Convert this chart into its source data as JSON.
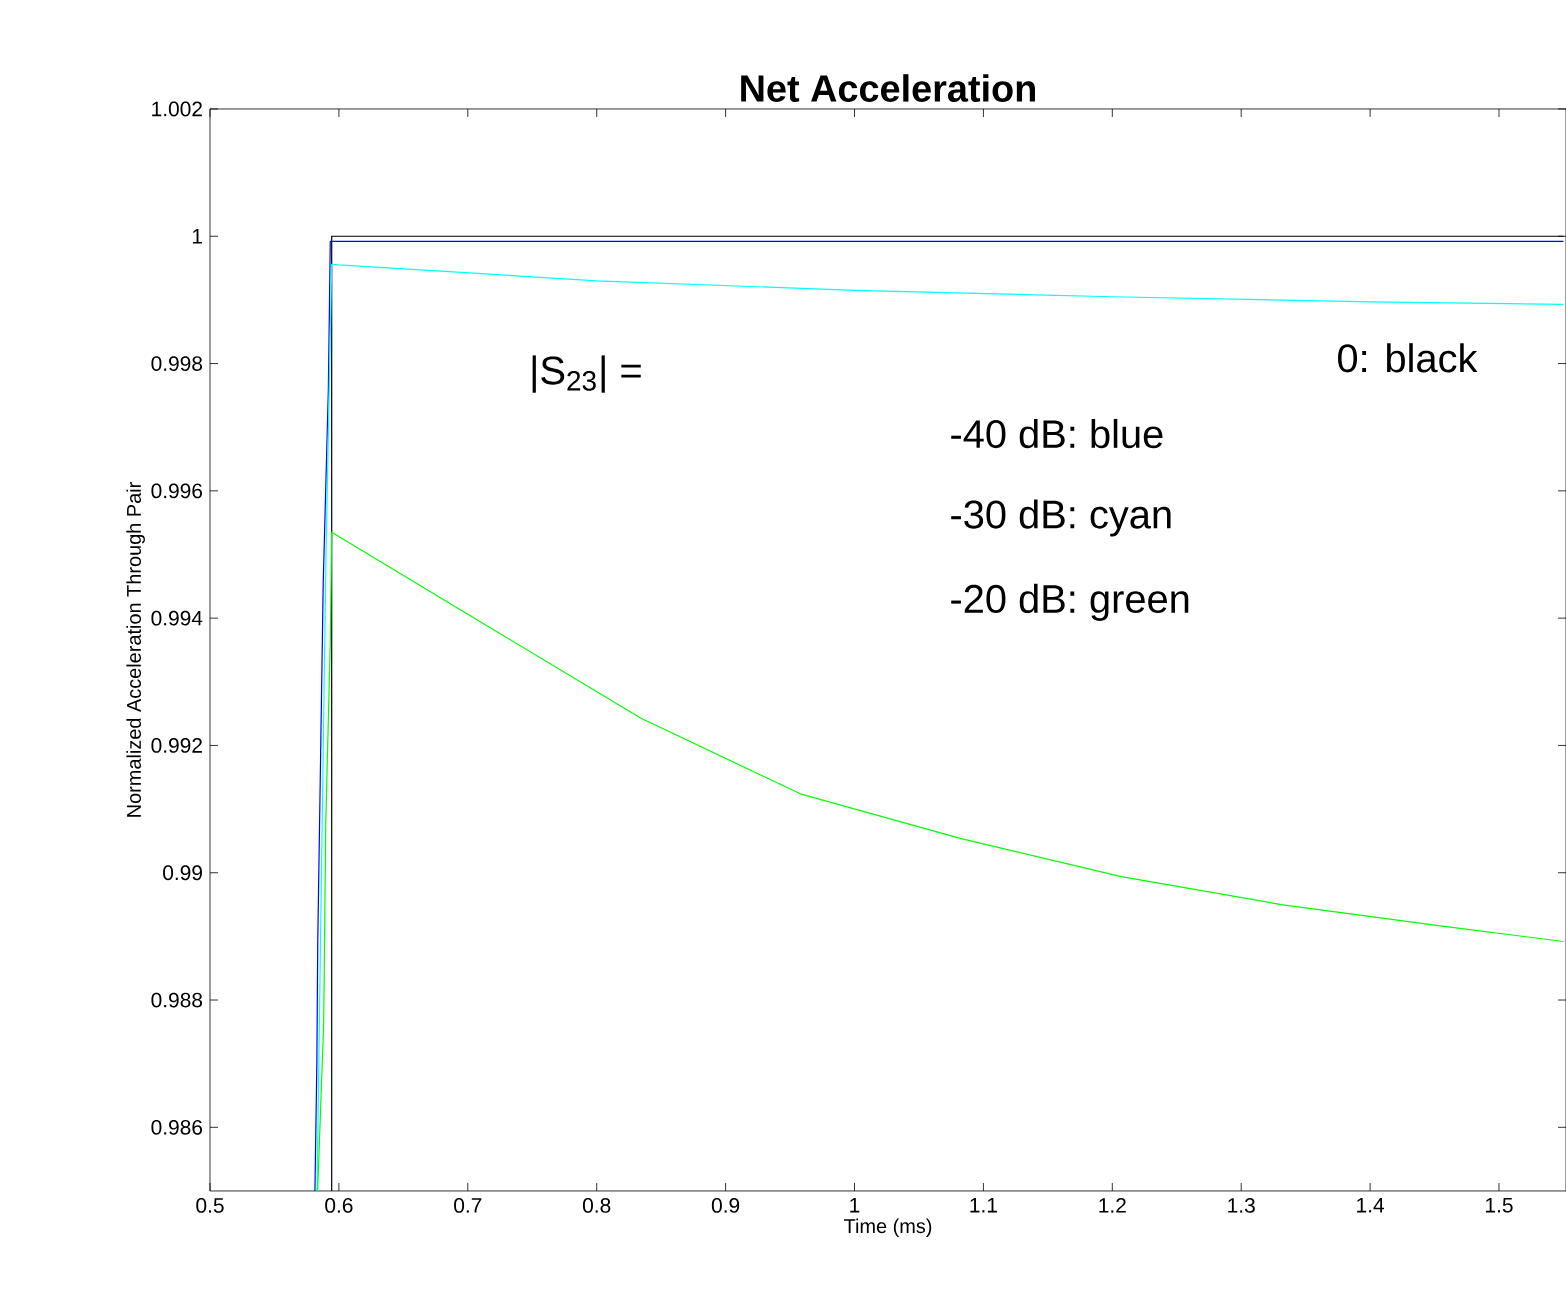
{
  "chart_data": {
    "type": "line",
    "title": "Net Acceleration",
    "xlabel": "Time (ms)",
    "ylabel": "Normalized Acceleration Through Pair",
    "xlim": [
      0.5,
      1.552
    ],
    "ylim": [
      0.985,
      1.002
    ],
    "xticks": [
      0.5,
      0.6,
      0.7,
      0.8,
      0.9,
      1,
      1.1,
      1.2,
      1.3,
      1.4,
      1.5
    ],
    "yticks": [
      0.986,
      0.988,
      0.99,
      0.992,
      0.994,
      0.996,
      0.998,
      1,
      1.002
    ],
    "grid": false,
    "marker": "none",
    "line_style": "solid",
    "annotations": [
      "|S$_{23}$|  =",
      "0:  black",
      "-40 dB:  blue",
      "-30 dB:  cyan",
      "-20 dB:  green"
    ],
    "series": [
      {
        "color": "#000000",
        "x": [
          0.5944,
          0.5944,
          1.55
        ],
        "values": [
          0.985,
          1.0,
          1.0
        ]
      },
      {
        "color": "#0000ff",
        "x": [
          0.5814,
          0.5829,
          0.5836,
          0.5856,
          0.5878,
          0.5918,
          0.5933,
          1.55
        ],
        "values": [
          0.985,
          0.98704,
          0.98893,
          0.99157,
          0.99453,
          0.99758,
          0.99992,
          0.99992
        ]
      },
      {
        "color": "#00ffff",
        "x": [
          0.583,
          0.59,
          0.5944,
          0.6,
          0.8,
          1.0,
          1.2,
          1.4,
          1.55
        ],
        "values": [
          0.985,
          0.995,
          0.99956,
          0.99955,
          0.9993,
          0.99915,
          0.99905,
          0.99897,
          0.99893
        ]
      },
      {
        "color": "#00ff00",
        "x": [
          0.5835,
          0.5882,
          0.5898,
          0.5933,
          0.5944,
          0.71,
          0.834,
          0.958,
          1.082,
          1.207,
          1.331,
          1.456,
          1.55
        ],
        "values": [
          0.985,
          0.98764,
          0.99079,
          0.99363,
          0.99535,
          0.99394,
          0.99243,
          0.99124,
          0.99054,
          0.98994,
          0.9895,
          0.98916,
          0.98892
        ]
      }
    ]
  }
}
